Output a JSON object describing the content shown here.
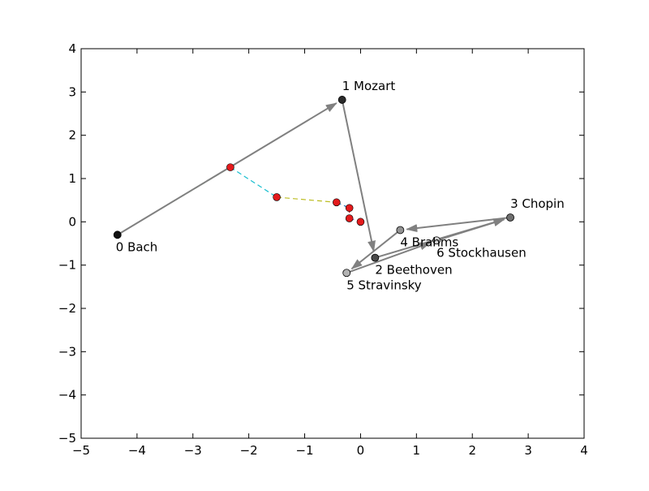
{
  "chart_data": {
    "type": "scatter",
    "title": "",
    "xlabel": "",
    "ylabel": "",
    "xlim": [
      -5,
      4
    ],
    "ylim": [
      -5,
      4
    ],
    "grid": false,
    "x_ticks": [
      -5,
      -4,
      -3,
      -2,
      -1,
      0,
      1,
      2,
      3,
      4
    ],
    "y_ticks": [
      -5,
      -4,
      -3,
      -2,
      -1,
      0,
      1,
      2,
      3,
      4
    ],
    "minus_sign": "−",
    "composers": [
      {
        "label": "0 Bach",
        "x": -4.35,
        "y": -0.3,
        "color": "#111111"
      },
      {
        "label": "1 Mozart",
        "x": -0.33,
        "y": 2.82,
        "color": "#2a2a2a"
      },
      {
        "label": "2 Beethoven",
        "x": 0.26,
        "y": -0.83,
        "color": "#4a4a4a"
      },
      {
        "label": "3 Chopin",
        "x": 2.68,
        "y": 0.1,
        "color": "#6e6e6e"
      },
      {
        "label": "4 Brahms",
        "x": 0.71,
        "y": -0.19,
        "color": "#929292"
      },
      {
        "label": "5 Stravinsky",
        "x": -0.25,
        "y": -1.18,
        "color": "#b2b2b2"
      },
      {
        "label": "6 Stockhausen",
        "x": 1.36,
        "y": -0.43,
        "color": "#d2d2d2"
      }
    ],
    "arrows": [
      [
        0,
        1
      ],
      [
        1,
        2
      ],
      [
        2,
        3
      ],
      [
        3,
        4
      ],
      [
        4,
        5
      ],
      [
        5,
        6
      ],
      [
        6,
        3
      ]
    ],
    "arrow_color": "#808080",
    "red_points": [
      {
        "x": -2.33,
        "y": 1.26
      },
      {
        "x": -1.5,
        "y": 0.57
      },
      {
        "x": -0.43,
        "y": 0.45
      },
      {
        "x": -0.2,
        "y": 0.32
      },
      {
        "x": -0.2,
        "y": 0.08
      },
      {
        "x": 0.0,
        "y": 0.0
      }
    ],
    "red_color": "#e31a1c",
    "dashed_segments": [
      {
        "from": [
          -4.35,
          -0.3
        ],
        "to": [
          -2.33,
          1.26
        ],
        "color": "#2ca02c"
      },
      {
        "from": [
          -2.33,
          1.26
        ],
        "to": [
          -1.5,
          0.57
        ],
        "color": "#17becf"
      },
      {
        "from": [
          -1.5,
          0.57
        ],
        "to": [
          -0.43,
          0.45
        ],
        "color": "#bcbd22"
      },
      {
        "from": [
          -0.43,
          0.45
        ],
        "to": [
          -0.2,
          0.32
        ],
        "color": "#1f77b4"
      },
      {
        "from": [
          -0.2,
          0.32
        ],
        "to": [
          -0.2,
          0.08
        ],
        "color": "#d62728"
      },
      {
        "from": [
          -0.2,
          0.08
        ],
        "to": [
          0.0,
          0.0
        ],
        "color": "#9467bd"
      }
    ]
  }
}
